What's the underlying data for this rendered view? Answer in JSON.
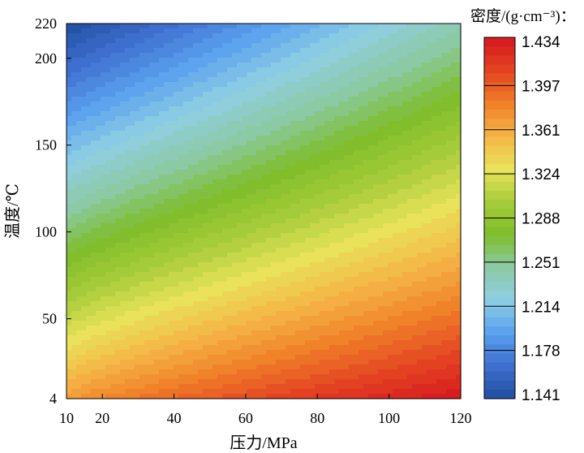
{
  "chart_data": {
    "type": "heatmap",
    "subtype": "filled-contour",
    "xlabel": "压力/MPa",
    "ylabel": "温度/℃",
    "colorbar_title": "密度/(g·cm⁻³)：",
    "xlim": [
      10,
      120
    ],
    "ylim": [
      4,
      220
    ],
    "x_ticks": [
      10,
      20,
      40,
      60,
      80,
      100,
      120
    ],
    "y_ticks": [
      4,
      50,
      100,
      150,
      200,
      220
    ],
    "colorbar_ticks": [
      "1.434",
      "1.397",
      "1.361",
      "1.324",
      "1.288",
      "1.251",
      "1.214",
      "1.178",
      "1.141"
    ],
    "zlim": [
      1.141,
      1.434
    ],
    "z_samples": {
      "x": [
        10,
        120
      ],
      "y": [
        4,
        220
      ],
      "values": [
        [
          1.365,
          1.434
        ],
        [
          1.141,
          1.241
        ]
      ]
    },
    "colormap": [
      "#1f4f9f",
      "#3f6fd0",
      "#5aa0ee",
      "#8fcfe4",
      "#8cc9a4",
      "#7ebd2a",
      "#a8cc3a",
      "#e9e35a",
      "#f5b446",
      "#f07f28",
      "#e34322",
      "#d6161e"
    ],
    "levels": 40,
    "grid": false
  }
}
